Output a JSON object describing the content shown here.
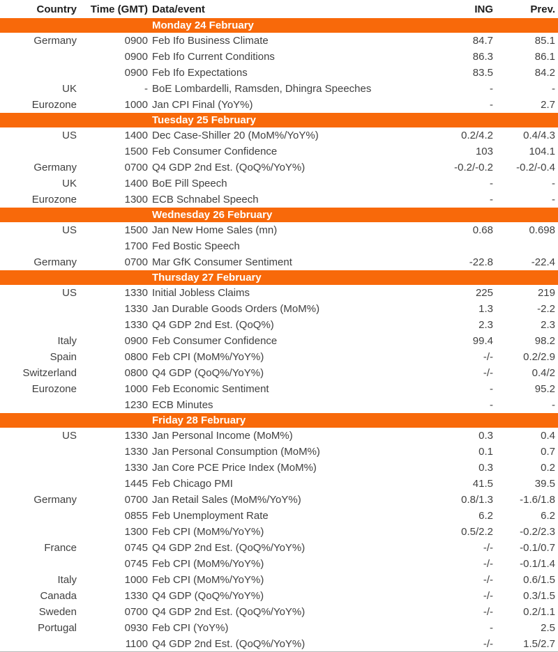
{
  "table": {
    "headers": {
      "country": "Country",
      "time": "Time (GMT)",
      "event": "Data/event",
      "ing": "ING",
      "prev": "Prev."
    },
    "colors": {
      "accent_orange": "#f8690a",
      "band_text": "#ffffff",
      "body_text": "#404040",
      "header_text": "#1f1f1f"
    },
    "days": [
      {
        "label": "Monday 24 February",
        "rows": [
          {
            "country": "Germany",
            "time": "0900",
            "event": "Feb Ifo Business Climate",
            "ing": "84.7",
            "prev": "85.1"
          },
          {
            "country": "",
            "time": "0900",
            "event": "Feb Ifo Current Conditions",
            "ing": "86.3",
            "prev": "86.1"
          },
          {
            "country": "",
            "time": "0900",
            "event": "Feb Ifo Expectations",
            "ing": "83.5",
            "prev": "84.2"
          },
          {
            "country": "UK",
            "time": "-",
            "event": "BoE Lombardelli, Ramsden, Dhingra Speeches",
            "ing": "-",
            "prev": "-"
          },
          {
            "country": "Eurozone",
            "time": "1000",
            "event": "Jan CPI Final (YoY%)",
            "ing": "-",
            "prev": "2.7"
          }
        ]
      },
      {
        "label": "Tuesday 25 February",
        "rows": [
          {
            "country": "US",
            "time": "1400",
            "event": "Dec Case-Shiller 20 (MoM%/YoY%)",
            "ing": "0.2/4.2",
            "prev": "0.4/4.3"
          },
          {
            "country": "",
            "time": "1500",
            "event": "Feb Consumer Confidence",
            "ing": "103",
            "prev": "104.1"
          },
          {
            "country": "Germany",
            "time": "0700",
            "event": "Q4 GDP 2nd Est. (QoQ%/YoY%)",
            "ing": "-0.2/-0.2",
            "prev": "-0.2/-0.4"
          },
          {
            "country": "UK",
            "time": "1400",
            "event": "BoE Pill Speech",
            "ing": "-",
            "prev": "-"
          },
          {
            "country": "Eurozone",
            "time": "1300",
            "event": "ECB Schnabel Speech",
            "ing": "-",
            "prev": "-"
          }
        ]
      },
      {
        "label": "Wednesday 26 February",
        "rows": [
          {
            "country": "US",
            "time": "1500",
            "event": "Jan New Home Sales (mn)",
            "ing": "0.68",
            "prev": "0.698"
          },
          {
            "country": "",
            "time": "1700",
            "event": "Fed Bostic Speech",
            "ing": "",
            "prev": ""
          },
          {
            "country": "Germany",
            "time": "0700",
            "event": "Mar GfK Consumer Sentiment",
            "ing": "-22.8",
            "prev": "-22.4"
          }
        ]
      },
      {
        "label": "Thursday 27 February",
        "rows": [
          {
            "country": "US",
            "time": "1330",
            "event": "Initial Jobless Claims",
            "ing": "225",
            "prev": "219"
          },
          {
            "country": "",
            "time": "1330",
            "event": "Jan Durable Goods Orders (MoM%)",
            "ing": "1.3",
            "prev": "-2.2"
          },
          {
            "country": "",
            "time": "1330",
            "event": "Q4 GDP 2nd Est. (QoQ%)",
            "ing": "2.3",
            "prev": "2.3"
          },
          {
            "country": "Italy",
            "time": "0900",
            "event": "Feb Consumer Confidence",
            "ing": "99.4",
            "prev": "98.2"
          },
          {
            "country": "Spain",
            "time": "0800",
            "event": "Feb CPI (MoM%/YoY%)",
            "ing": "-/-",
            "prev": "0.2/2.9"
          },
          {
            "country": "Switzerland",
            "time": "0800",
            "event": "Q4 GDP (QoQ%/YoY%)",
            "ing": "-/-",
            "prev": "0.4/2"
          },
          {
            "country": "Eurozone",
            "time": "1000",
            "event": "Feb Economic Sentiment",
            "ing": "-",
            "prev": "95.2"
          },
          {
            "country": "",
            "time": "1230",
            "event": "ECB Minutes",
            "ing": "-",
            "prev": "-"
          }
        ]
      },
      {
        "label": "Friday 28 February",
        "rows": [
          {
            "country": "US",
            "time": "1330",
            "event": "Jan Personal Income (MoM%)",
            "ing": "0.3",
            "prev": "0.4"
          },
          {
            "country": "",
            "time": "1330",
            "event": "Jan Personal Consumption (MoM%)",
            "ing": "0.1",
            "prev": "0.7"
          },
          {
            "country": "",
            "time": "1330",
            "event": "Jan Core PCE Price Index (MoM%)",
            "ing": "0.3",
            "prev": "0.2"
          },
          {
            "country": "",
            "time": "1445",
            "event": "Feb Chicago PMI",
            "ing": "41.5",
            "prev": "39.5"
          },
          {
            "country": "Germany",
            "time": "0700",
            "event": "Jan Retail Sales (MoM%/YoY%)",
            "ing": "0.8/1.3",
            "prev": "-1.6/1.8"
          },
          {
            "country": "",
            "time": "0855",
            "event": "Feb Unemployment Rate",
            "ing": "6.2",
            "prev": "6.2"
          },
          {
            "country": "",
            "time": "1300",
            "event": "Feb CPI (MoM%/YoY%)",
            "ing": "0.5/2.2",
            "prev": "-0.2/2.3"
          },
          {
            "country": "France",
            "time": "0745",
            "event": "Q4 GDP 2nd Est. (QoQ%/YoY%)",
            "ing": "-/-",
            "prev": "-0.1/0.7"
          },
          {
            "country": "",
            "time": "0745",
            "event": "Feb CPI (MoM%/YoY%)",
            "ing": "-/-",
            "prev": "-0.1/1.4"
          },
          {
            "country": "Italy",
            "time": "1000",
            "event": "Feb CPI (MoM%/YoY%)",
            "ing": "-/-",
            "prev": "0.6/1.5"
          },
          {
            "country": "Canada",
            "time": "1330",
            "event": "Q4 GDP (QoQ%/YoY%)",
            "ing": "-/-",
            "prev": "0.3/1.5"
          },
          {
            "country": "Sweden",
            "time": "0700",
            "event": "Q4 GDP 2nd Est. (QoQ%/YoY%)",
            "ing": "-/-",
            "prev": "0.2/1.1"
          },
          {
            "country": "Portugal",
            "time": "0930",
            "event": "Feb CPI (YoY%)",
            "ing": "-",
            "prev": "2.5"
          },
          {
            "country": "",
            "time": "1100",
            "event": "Q4 GDP 2nd Est. (QoQ%/YoY%)",
            "ing": "-/-",
            "prev": "1.5/2.7"
          }
        ]
      }
    ]
  }
}
